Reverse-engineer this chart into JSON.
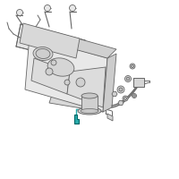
{
  "background_color": "#ffffff",
  "line_color": "#666666",
  "light_gray": "#e8e8e8",
  "mid_gray": "#cccccc",
  "dark_gray": "#888888",
  "highlight_color": "#2aacac",
  "fig_size": [
    2.0,
    2.0
  ],
  "dpi": 100
}
